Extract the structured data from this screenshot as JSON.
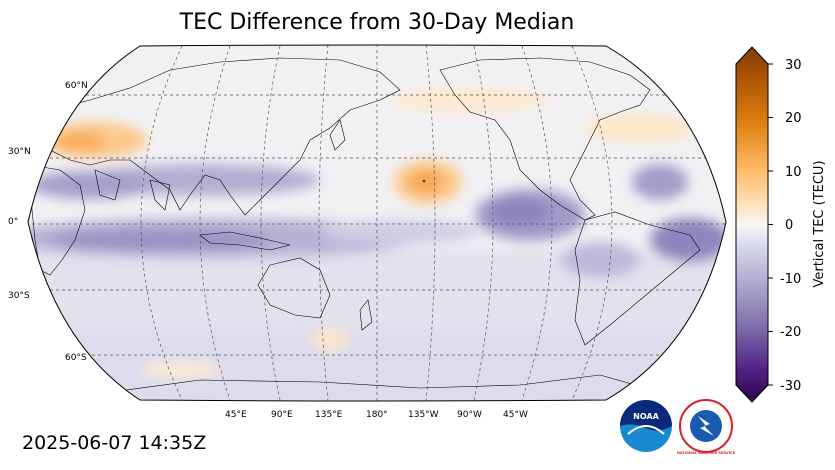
{
  "title": "TEC Difference from 30-Day Median",
  "timestamp": "2025-06-07 14:35Z",
  "map": {
    "projection": "robinson",
    "central_longitude": 180,
    "lat_labels": [
      "60°N",
      "30°N",
      "0°",
      "30°S",
      "60°S"
    ],
    "lon_labels": [
      "45°E",
      "90°E",
      "135°E",
      "180°",
      "135°W",
      "90°W",
      "45°W"
    ],
    "features": [
      {
        "name": "europe-positive-anomaly",
        "value": 12
      },
      {
        "name": "central-pacific-positive-anomaly",
        "value": 18
      },
      {
        "name": "north-pacific-positive-anomaly",
        "value": 4
      },
      {
        "name": "indian-ocean-negative-band",
        "value": -12
      },
      {
        "name": "equatorial-negative-band",
        "value": -14
      },
      {
        "name": "east-pacific-negative-anomaly",
        "value": -16
      },
      {
        "name": "south-america-negative-anomaly",
        "value": -18
      }
    ]
  },
  "colorbar": {
    "label": "Vertical TEC (TECU)",
    "min": -30,
    "max": 30,
    "ticks": [
      "30",
      "20",
      "10",
      "0",
      "-10",
      "-20",
      "-30"
    ],
    "colors_top_to_bottom": [
      "#7f3b08",
      "#b35806",
      "#e08214",
      "#fdb863",
      "#fee0b6",
      "#f7f7f7",
      "#d8daeb",
      "#b2abd2",
      "#8073ac",
      "#542788",
      "#2d004b"
    ]
  },
  "logos": {
    "noaa_text": "NOAA",
    "nws_text": "NATIONAL WEATHER SERVICE"
  }
}
